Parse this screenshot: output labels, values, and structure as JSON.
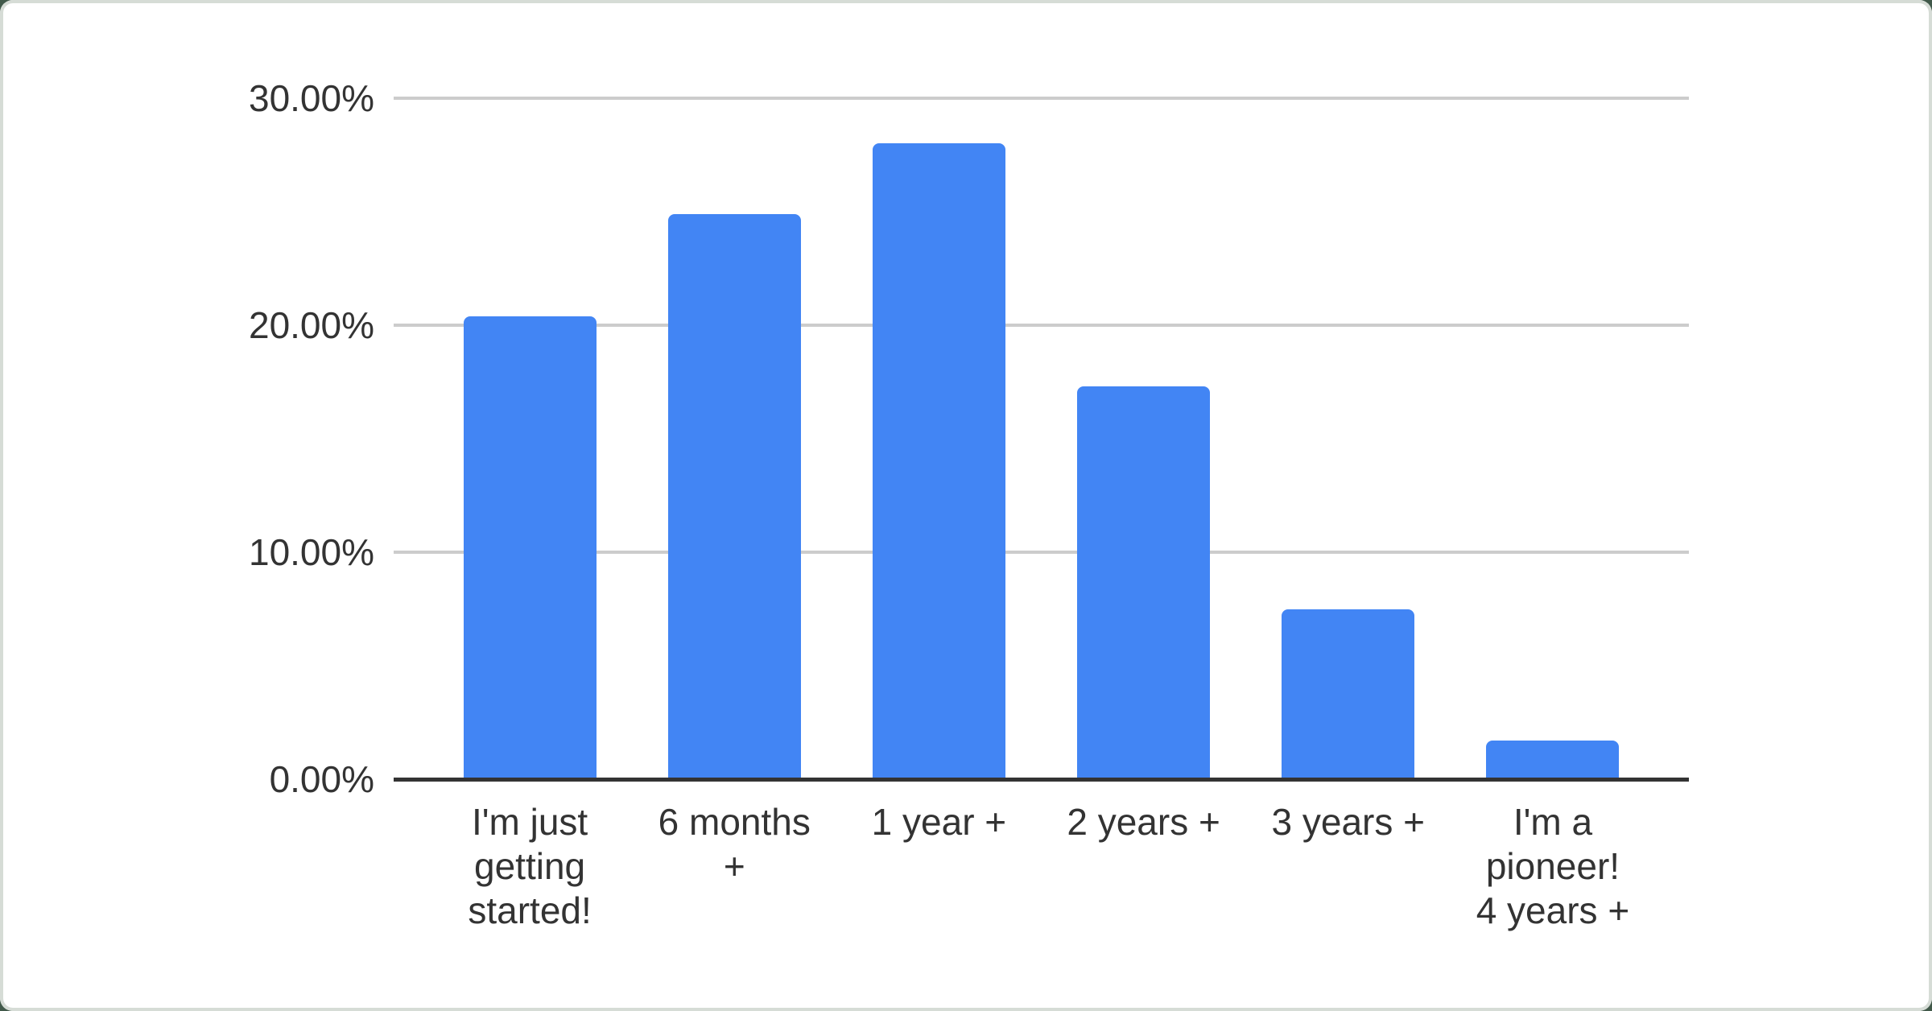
{
  "window": {
    "outer_background": "#41594a",
    "card_background": "#ffffff",
    "card_border_color": "#d6dcd6"
  },
  "chart_data": {
    "type": "bar",
    "title": "",
    "categories": [
      "I'm just getting started!",
      "6 months +",
      "1 year +",
      "2 years +",
      "3 years +",
      "I'm a pioneer! 4 years +"
    ],
    "category_lines": [
      [
        "I'm just",
        "getting",
        "started!"
      ],
      [
        "6 months",
        "+"
      ],
      [
        "1 year +"
      ],
      [
        "2 years +"
      ],
      [
        "3 years +"
      ],
      [
        "I'm a",
        "pioneer!",
        "4 years +"
      ]
    ],
    "values": [
      20.4,
      24.9,
      28.0,
      17.3,
      7.5,
      1.7
    ],
    "unit": "%",
    "xlabel": "",
    "ylabel": "",
    "ylim": [
      0,
      30
    ],
    "y_ticks": [
      {
        "label": "0.00%",
        "value": 0
      },
      {
        "label": "10.00%",
        "value": 10
      },
      {
        "label": "20.00%",
        "value": 20
      },
      {
        "label": "30.00%",
        "value": 30
      }
    ],
    "grid": true,
    "legend": "none",
    "bar_color": "#4285f4",
    "gridline_color": "#cccccc",
    "axis_line_color": "#333333",
    "text_color": "#333333"
  }
}
